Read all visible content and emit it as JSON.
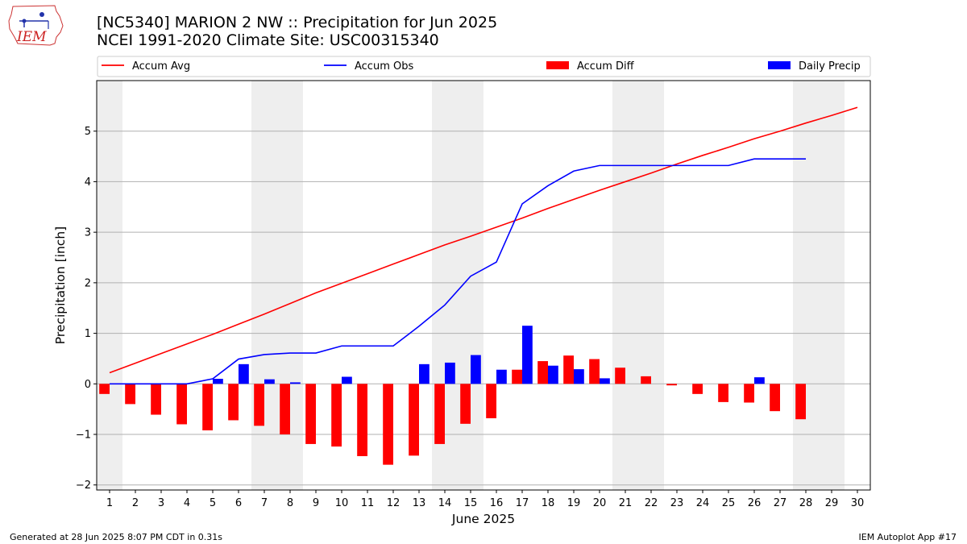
{
  "header": {
    "title_line1": "[NC5340] MARION 2 NW :: Precipitation for Jun 2025",
    "title_line2": "NCEI 1991-2020 Climate Site: USC00315340",
    "logo_text": "IEM"
  },
  "footer": {
    "generated": "Generated at 28 Jun 2025 8:07 PM CDT in 0.31s",
    "app": "IEM Autoplot App #17"
  },
  "colors": {
    "accum_avg": "#ff0000",
    "accum_obs": "#0000ff",
    "accum_diff": "#ff0000",
    "daily_precip": "#0000ff",
    "weekend_shade": "#eeeeee",
    "grid": "#b0b0b0"
  },
  "chart_data": {
    "type": "bar",
    "xlabel": "June 2025",
    "ylabel": "Precipitation [inch]",
    "xlim": [
      0.5,
      30.5
    ],
    "ylim": [
      -2.1,
      6.0
    ],
    "yticks": [
      -2,
      -1,
      0,
      1,
      2,
      3,
      4,
      5
    ],
    "ytick_labels": [
      "−2",
      "−1",
      "0",
      "1",
      "2",
      "3",
      "4",
      "5"
    ],
    "xticks": [
      1,
      2,
      3,
      4,
      5,
      6,
      7,
      8,
      9,
      10,
      11,
      12,
      13,
      14,
      15,
      16,
      17,
      18,
      19,
      20,
      21,
      22,
      23,
      24,
      25,
      26,
      27,
      28,
      29,
      30
    ],
    "grid": "horizontal",
    "legend_position": "top, above plot",
    "weekend_spans": [
      [
        0.5,
        1.5
      ],
      [
        6.5,
        8.5
      ],
      [
        13.5,
        15.5
      ],
      [
        20.5,
        22.5
      ],
      [
        27.5,
        29.5
      ]
    ],
    "days": [
      1,
      2,
      3,
      4,
      5,
      6,
      7,
      8,
      9,
      10,
      11,
      12,
      13,
      14,
      15,
      16,
      17,
      18,
      19,
      20,
      21,
      22,
      23,
      24,
      25,
      26,
      27,
      28,
      29,
      30
    ],
    "series": [
      {
        "name": "Accum Avg",
        "kind": "line",
        "values": [
          0.22,
          0.41,
          0.6,
          0.79,
          0.98,
          1.18,
          1.38,
          1.59,
          1.8,
          1.99,
          2.18,
          2.37,
          2.56,
          2.75,
          2.92,
          3.1,
          3.28,
          3.47,
          3.65,
          3.83,
          4.0,
          4.17,
          4.35,
          4.52,
          4.68,
          4.85,
          5.0,
          5.16,
          5.31,
          5.47
        ]
      },
      {
        "name": "Accum Obs",
        "kind": "line",
        "values": [
          0.0,
          0.0,
          0.0,
          0.0,
          0.1,
          0.49,
          0.58,
          0.61,
          0.61,
          0.75,
          0.75,
          0.75,
          1.14,
          1.56,
          2.13,
          2.41,
          3.56,
          3.92,
          4.21,
          4.32,
          4.32,
          4.32,
          4.32,
          4.32,
          4.32,
          4.45,
          4.45,
          4.45,
          null,
          null
        ]
      },
      {
        "name": "Accum Diff",
        "kind": "bar",
        "values": [
          -0.2,
          -0.4,
          -0.61,
          -0.8,
          -0.92,
          -0.72,
          -0.83,
          -1.0,
          -1.19,
          -1.24,
          -1.43,
          -1.6,
          -1.42,
          -1.19,
          -0.79,
          -0.68,
          0.28,
          0.45,
          0.56,
          0.49,
          0.32,
          0.15,
          -0.03,
          -0.2,
          -0.36,
          -0.37,
          -0.54,
          -0.7,
          null,
          null
        ]
      },
      {
        "name": "Daily Precip",
        "kind": "bar",
        "values": [
          0,
          0,
          0,
          0,
          0.1,
          0.39,
          0.09,
          0.03,
          0,
          0.14,
          0,
          0,
          0.39,
          0.42,
          0.57,
          0.28,
          1.15,
          0.36,
          0.29,
          0.11,
          0,
          0,
          0,
          0,
          0,
          0.13,
          0,
          0,
          null,
          null
        ]
      }
    ]
  }
}
